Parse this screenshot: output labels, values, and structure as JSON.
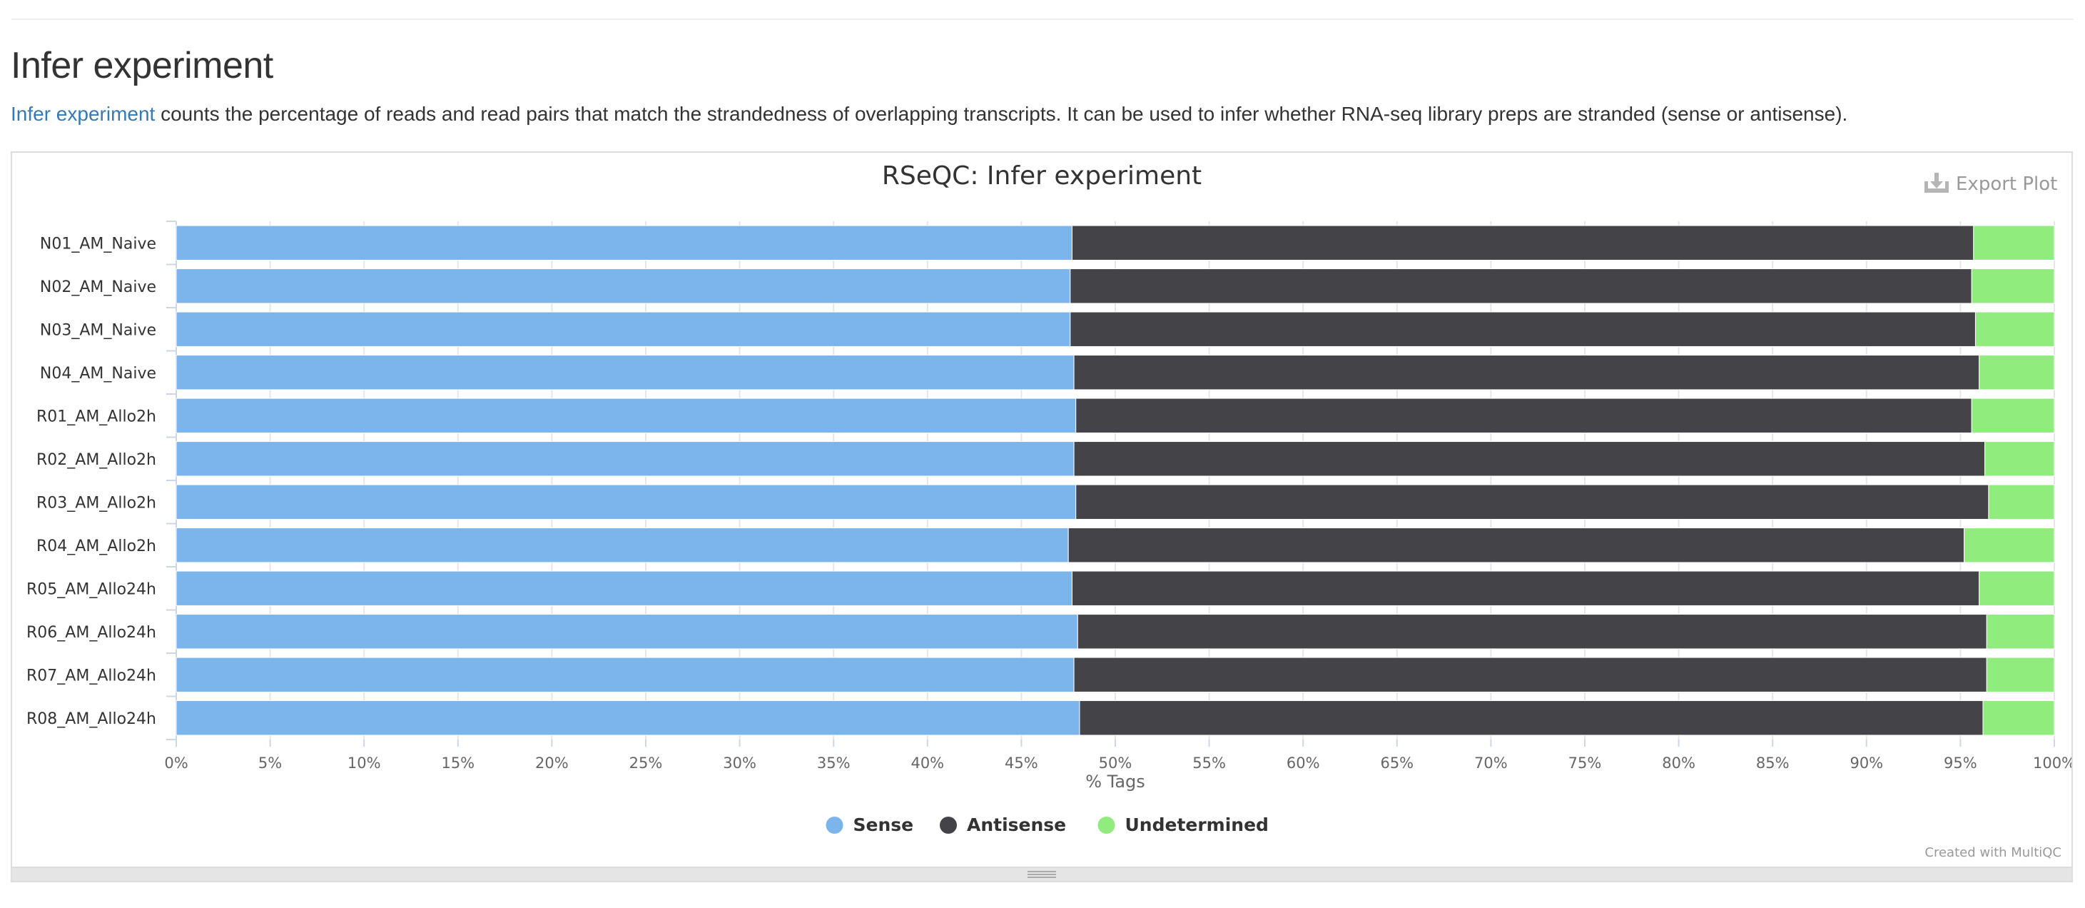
{
  "section": {
    "title": "Infer experiment",
    "link_text": "Infer experiment",
    "description": " counts the percentage of reads and read pairs that match the strandedness of overlapping transcripts. It can be used to infer whether RNA-seq library preps are stranded (sense or antisense)."
  },
  "toolbar": {
    "export_label": "Export Plot",
    "export_icon": "download-icon"
  },
  "credit": "Created with MultiQC",
  "chart_data": {
    "type": "bar",
    "orientation": "horizontal",
    "stacking": "percent",
    "title": "RSeQC: Infer experiment",
    "xlabel": "% Tags",
    "ylabel": "",
    "xlim": [
      0,
      100
    ],
    "x_ticks": [
      "0%",
      "5%",
      "10%",
      "15%",
      "20%",
      "25%",
      "30%",
      "35%",
      "40%",
      "45%",
      "50%",
      "55%",
      "60%",
      "65%",
      "70%",
      "75%",
      "80%",
      "85%",
      "90%",
      "95%",
      "100%"
    ],
    "grid": true,
    "legend_position": "bottom",
    "categories": [
      "N01_AM_Naive",
      "N02_AM_Naive",
      "N03_AM_Naive",
      "N04_AM_Naive",
      "R01_AM_Allo2h",
      "R02_AM_Allo2h",
      "R03_AM_Allo2h",
      "R04_AM_Allo2h",
      "R05_AM_Allo24h",
      "R06_AM_Allo24h",
      "R07_AM_Allo24h",
      "R08_AM_Allo24h"
    ],
    "series": [
      {
        "name": "Sense",
        "color": "#7cb5ec",
        "values": [
          47.7,
          47.6,
          47.6,
          47.8,
          47.9,
          47.8,
          47.9,
          47.5,
          47.7,
          48.0,
          47.8,
          48.1
        ]
      },
      {
        "name": "Antisense",
        "color": "#434348",
        "values": [
          48.0,
          48.0,
          48.2,
          48.2,
          47.7,
          48.5,
          48.6,
          47.7,
          48.3,
          48.4,
          48.6,
          48.1
        ]
      },
      {
        "name": "Undetermined",
        "color": "#90ed7d",
        "values": [
          4.3,
          4.4,
          4.2,
          4.0,
          4.4,
          3.7,
          3.5,
          4.8,
          4.0,
          3.6,
          3.6,
          3.8
        ]
      }
    ]
  }
}
